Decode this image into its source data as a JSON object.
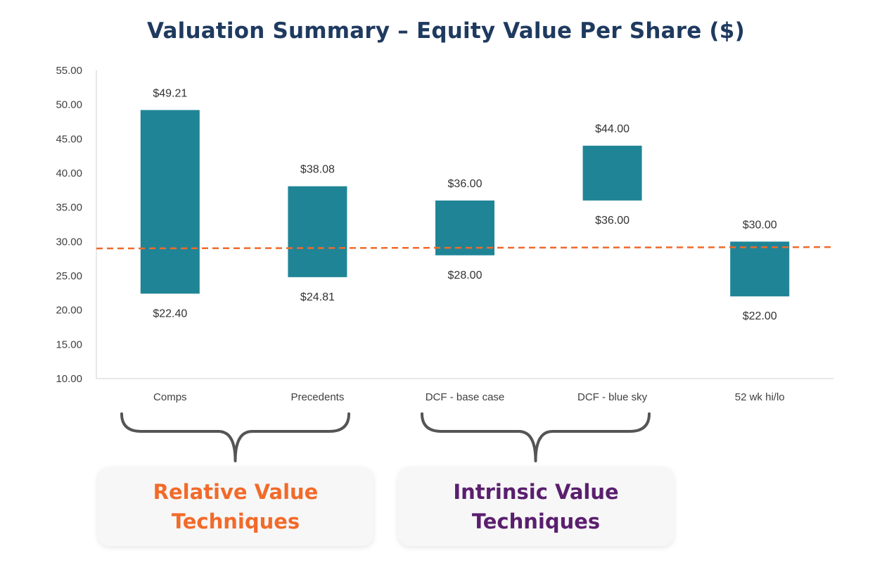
{
  "chart_data": {
    "type": "floating-bar",
    "title": "Valuation Summary – Equity Value Per Share ($)",
    "xlabel": "",
    "ylabel": "",
    "ylim": [
      10,
      55
    ],
    "yticks": [
      "10.00",
      "15.00",
      "20.00",
      "25.00",
      "30.00",
      "35.00",
      "40.00",
      "45.00",
      "50.00",
      "55.00"
    ],
    "categories": [
      "Comps",
      "Precedents",
      "DCF - base case",
      "DCF - blue sky",
      "52 wk hi/lo"
    ],
    "low": [
      22.4,
      24.81,
      28.0,
      36.0,
      22.0
    ],
    "high": [
      49.21,
      38.08,
      36.0,
      44.0,
      30.0
    ],
    "low_labels": [
      "$22.40",
      "$24.81",
      "$28.00",
      "$36.00",
      "$22.00"
    ],
    "high_labels": [
      "$49.21",
      "$38.08",
      "$36.00",
      "$44.00",
      "$30.00"
    ],
    "reference_line": {
      "start": 29.0,
      "end": 29.2,
      "style": "dashed"
    },
    "bar_color": "#1f8596",
    "line_color": "#ef6a2c"
  },
  "groups": {
    "relative": {
      "line1": "Relative Value",
      "line2": "Techniques",
      "color": "#f26a2a"
    },
    "intrinsic": {
      "line1": "Intrinsic Value",
      "line2": "Techniques",
      "color": "#5a1f6e"
    }
  }
}
